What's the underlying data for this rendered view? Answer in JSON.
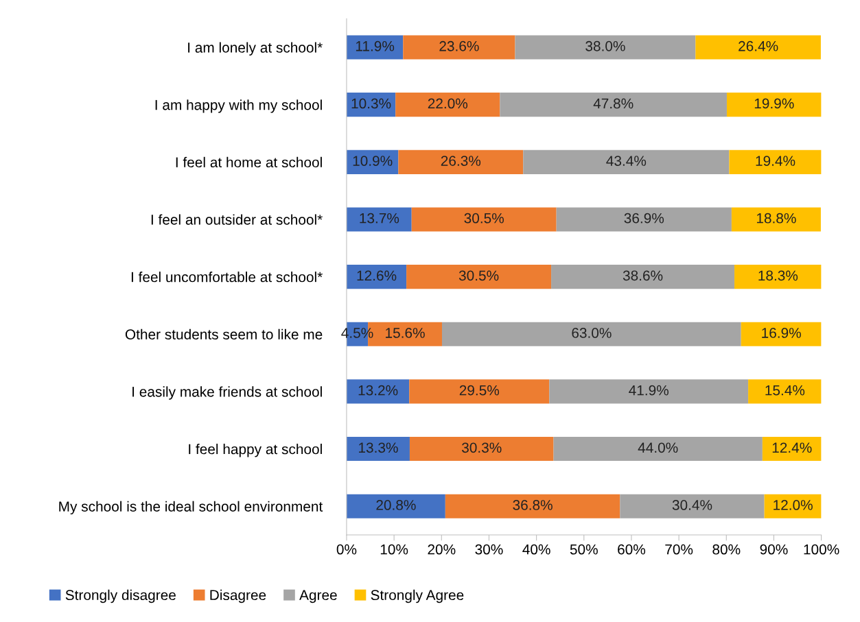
{
  "chart_data": {
    "type": "bar",
    "orientation": "horizontal",
    "stacked": true,
    "categories": [
      "I am lonely at school*",
      "I am happy with my school",
      "I feel at home at school",
      "I feel an outsider at school*",
      "I feel uncomfortable at school*",
      "Other students seem to like me",
      "I easily make friends at school",
      "I feel happy at school",
      "My school is the ideal school environment"
    ],
    "series": [
      {
        "name": "Strongly disagree",
        "color": "#4472c4",
        "values": [
          11.9,
          10.3,
          10.9,
          13.7,
          12.6,
          4.5,
          13.2,
          13.3,
          20.8
        ],
        "value_labels": [
          "11.9%",
          "10.3%",
          "10.9%",
          "13.7%",
          "12.6%",
          "4.5%",
          "13.2%",
          "13.3%",
          "20.8%"
        ]
      },
      {
        "name": "Disagree",
        "color": "#ed7d31",
        "values": [
          23.6,
          22.0,
          26.3,
          30.5,
          30.5,
          15.6,
          29.5,
          30.3,
          36.8
        ],
        "value_labels": [
          "23.6%",
          "22.0%",
          "26.3%",
          "30.5%",
          "30.5%",
          "15.6%",
          "29.5%",
          "30.3%",
          "36.8%"
        ]
      },
      {
        "name": "Agree",
        "color": "#a5a5a5",
        "values": [
          38.0,
          47.8,
          43.4,
          36.9,
          38.6,
          63.0,
          41.9,
          44.0,
          30.4
        ],
        "value_labels": [
          "38.0%",
          "47.8%",
          "43.4%",
          "36.9%",
          "38.6%",
          "63.0%",
          "41.9%",
          "44.0%",
          "30.4%"
        ]
      },
      {
        "name": "Strongly Agree",
        "color": "#ffc000",
        "values": [
          26.4,
          19.9,
          19.4,
          18.8,
          18.3,
          16.9,
          15.4,
          12.4,
          12.0
        ],
        "value_labels": [
          "26.4%",
          "19.9%",
          "19.4%",
          "18.8%",
          "18.3%",
          "16.9%",
          "15.4%",
          "12.4%",
          "12.0%"
        ]
      }
    ],
    "xlim": [
      0,
      100
    ],
    "xticks": [
      {
        "value": 0,
        "label": "0%"
      },
      {
        "value": 10,
        "label": "10%"
      },
      {
        "value": 20,
        "label": "20%"
      },
      {
        "value": 30,
        "label": "30%"
      },
      {
        "value": 40,
        "label": "40%"
      },
      {
        "value": 50,
        "label": "50%"
      },
      {
        "value": 60,
        "label": "60%"
      },
      {
        "value": 70,
        "label": "70%"
      },
      {
        "value": 80,
        "label": "80%"
      },
      {
        "value": 90,
        "label": "90%"
      },
      {
        "value": 100,
        "label": "100%"
      }
    ],
    "grid": false,
    "legend": "bottom"
  }
}
